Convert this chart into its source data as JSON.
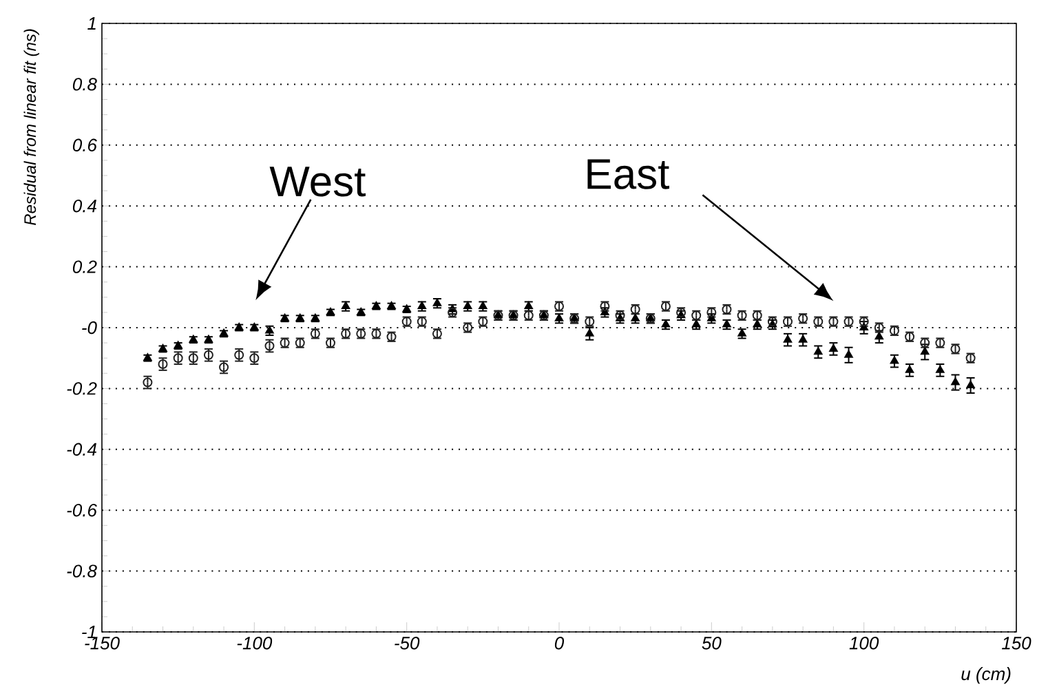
{
  "chart_data": {
    "type": "scatter",
    "xlabel": "u (cm)",
    "ylabel": "Residual from linear fit (ns)",
    "xlim": [
      -150,
      150
    ],
    "xticks": [
      -150,
      -100,
      -50,
      0,
      50,
      100,
      150
    ],
    "ylim": [
      -1,
      1
    ],
    "yticks": [
      -1,
      -0.8,
      -0.6,
      -0.4,
      -0.2,
      {
        "value": 0,
        "label": "-0"
      },
      0.2,
      0.4,
      0.6,
      0.8,
      1
    ],
    "grid": "y",
    "x": [
      -135,
      -130,
      -125,
      -120,
      -115,
      -110,
      -105,
      -100,
      -95,
      -90,
      -85,
      -80,
      -75,
      -70,
      -65,
      -60,
      -55,
      -50,
      -45,
      -40,
      -35,
      -30,
      -25,
      -20,
      -15,
      -10,
      -5,
      0,
      5,
      10,
      15,
      20,
      25,
      30,
      35,
      40,
      45,
      50,
      55,
      60,
      65,
      70,
      75,
      80,
      85,
      90,
      95,
      100,
      105,
      110,
      115,
      120,
      125,
      130,
      135
    ],
    "series": [
      {
        "name": "West",
        "color": "#000000",
        "marker": "triangle",
        "values": [
          -0.1,
          -0.07,
          -0.06,
          -0.04,
          -0.04,
          -0.02,
          0.0,
          0.0,
          -0.01,
          0.03,
          0.03,
          0.03,
          0.05,
          0.07,
          0.05,
          0.07,
          0.07,
          0.06,
          0.07,
          0.08,
          0.06,
          0.07,
          0.07,
          0.04,
          0.04,
          0.07,
          0.04,
          0.03,
          0.03,
          -0.02,
          0.05,
          0.03,
          0.03,
          0.03,
          0.01,
          0.04,
          0.01,
          0.03,
          0.01,
          -0.02,
          0.01,
          0.01,
          -0.04,
          -0.04,
          -0.08,
          -0.07,
          -0.09,
          0.0,
          -0.03,
          -0.11,
          -0.14,
          -0.08,
          -0.14,
          -0.18,
          -0.19
        ],
        "errors": [
          0.01,
          0.01,
          0.01,
          0.01,
          0.01,
          0.01,
          0.01,
          0.01,
          0.015,
          0.01,
          0.01,
          0.01,
          0.01,
          0.015,
          0.01,
          0.01,
          0.01,
          0.01,
          0.015,
          0.015,
          0.015,
          0.015,
          0.015,
          0.015,
          0.015,
          0.015,
          0.015,
          0.015,
          0.015,
          0.02,
          0.015,
          0.015,
          0.015,
          0.015,
          0.015,
          0.015,
          0.015,
          0.015,
          0.015,
          0.015,
          0.015,
          0.015,
          0.02,
          0.02,
          0.02,
          0.02,
          0.025,
          0.02,
          0.02,
          0.02,
          0.02,
          0.025,
          0.02,
          0.025,
          0.025
        ]
      },
      {
        "name": "East",
        "color": "#222222",
        "marker": "circle",
        "values": [
          -0.18,
          -0.12,
          -0.1,
          -0.1,
          -0.09,
          -0.13,
          -0.09,
          -0.1,
          -0.06,
          -0.05,
          -0.05,
          -0.02,
          -0.05,
          -0.02,
          -0.02,
          -0.02,
          -0.03,
          0.02,
          0.02,
          -0.02,
          0.05,
          0.0,
          0.02,
          0.04,
          0.04,
          0.04,
          0.04,
          0.07,
          0.03,
          0.02,
          0.07,
          0.04,
          0.06,
          0.03,
          0.07,
          0.05,
          0.04,
          0.05,
          0.06,
          0.04,
          0.04,
          0.02,
          0.02,
          0.03,
          0.02,
          0.02,
          0.02,
          0.02,
          0.0,
          -0.01,
          -0.03,
          -0.05,
          -0.05,
          -0.07,
          -0.1
        ],
        "errors": [
          0.02,
          0.02,
          0.02,
          0.02,
          0.02,
          0.02,
          0.02,
          0.02,
          0.02,
          0.015,
          0.015,
          0.015,
          0.015,
          0.015,
          0.015,
          0.015,
          0.015,
          0.015,
          0.015,
          0.015,
          0.015,
          0.015,
          0.015,
          0.015,
          0.015,
          0.015,
          0.015,
          0.015,
          0.015,
          0.015,
          0.015,
          0.015,
          0.015,
          0.015,
          0.015,
          0.015,
          0.015,
          0.015,
          0.015,
          0.015,
          0.015,
          0.015,
          0.015,
          0.015,
          0.015,
          0.015,
          0.015,
          0.015,
          0.015,
          0.015,
          0.015,
          0.015,
          0.015,
          0.015,
          0.015
        ]
      }
    ]
  }
}
